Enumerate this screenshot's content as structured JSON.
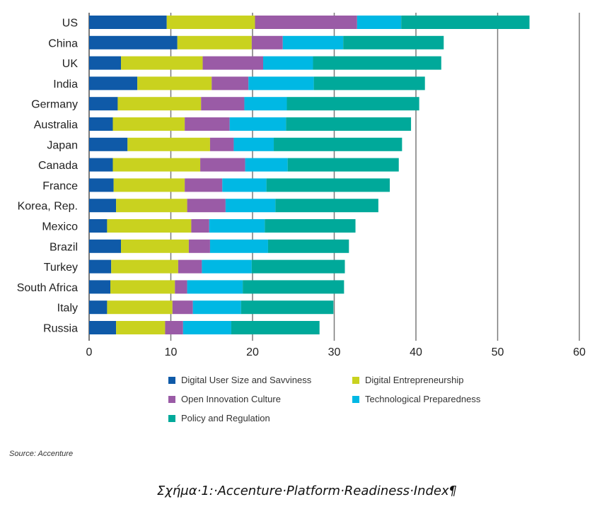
{
  "chart_data": {
    "type": "bar",
    "orientation": "horizontal",
    "stacked": true,
    "title": "",
    "xlabel": "",
    "ylabel": "",
    "xlim": [
      0,
      60
    ],
    "xticks": [
      0,
      10,
      20,
      30,
      40,
      50,
      60
    ],
    "grid": true,
    "legend_position": "bottom",
    "categories": [
      "US",
      "China",
      "UK",
      "India",
      "Germany",
      "Australia",
      "Japan",
      "Canada",
      "France",
      "Korea, Rep.",
      "Mexico",
      "Brazil",
      "Turkey",
      "South Africa",
      "Italy",
      "Russia"
    ],
    "series": [
      {
        "name": "Digital User Size and Savviness",
        "color": "#0f5aa8",
        "values": [
          9.5,
          10.8,
          3.9,
          5.9,
          3.5,
          2.9,
          4.7,
          2.9,
          3.0,
          3.3,
          2.2,
          3.9,
          2.7,
          2.6,
          2.2,
          3.3
        ]
      },
      {
        "name": "Digital Entrepreneurship",
        "color": "#c9d21f",
        "values": [
          10.8,
          9.1,
          10.0,
          9.1,
          10.2,
          8.8,
          10.1,
          10.7,
          8.7,
          8.7,
          10.3,
          8.3,
          8.2,
          7.9,
          8.0,
          6.0
        ]
      },
      {
        "name": "Open Innovation Culture",
        "color": "#9a5ba6",
        "values": [
          12.5,
          3.8,
          7.4,
          4.5,
          5.3,
          5.5,
          2.9,
          5.5,
          4.6,
          4.7,
          2.2,
          2.6,
          2.9,
          1.5,
          2.5,
          2.2
        ]
      },
      {
        "name": "Technological Preparedness",
        "color": "#00b8e4",
        "values": [
          5.4,
          7.4,
          6.1,
          8.0,
          5.2,
          6.9,
          4.9,
          5.2,
          5.4,
          6.1,
          6.8,
          7.1,
          6.1,
          6.8,
          5.9,
          5.9
        ]
      },
      {
        "name": "Policy and Regulation",
        "color": "#00a99a",
        "values": [
          15.7,
          12.3,
          15.7,
          13.6,
          16.2,
          15.3,
          15.7,
          13.6,
          15.1,
          12.6,
          11.1,
          9.9,
          11.4,
          12.4,
          11.3,
          10.8
        ]
      }
    ],
    "legend": [
      "Digital User Size and Savviness",
      "Digital Entrepreneurship",
      "Open Innovation Culture",
      "Technological Preparedness",
      "Policy and Regulation"
    ]
  },
  "source": "Source: Accenture",
  "caption": "Σχήμα·1:·Accenture·Platform·Readiness·Index¶",
  "colors": {
    "gridline": "#7a7a7a"
  }
}
